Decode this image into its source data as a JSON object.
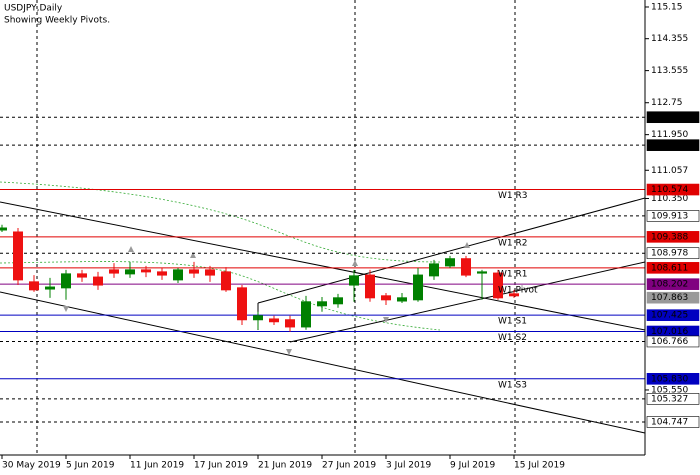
{
  "chart_data": {
    "type": "candlestick",
    "title": "USDJPY,Daily",
    "subtitle": "Showing Weekly Pivots.",
    "categories": [
      "30 May 2019",
      null,
      null,
      null,
      "5 Jun 2019",
      null,
      null,
      null,
      "11 Jun 2019",
      null,
      null,
      null,
      "17 Jun 2019",
      null,
      null,
      null,
      "21 Jun 2019",
      null,
      null,
      null,
      "27 Jun 2019",
      null,
      null,
      null,
      "3 Jul 2019",
      null,
      null,
      null,
      "9 Jul 2019",
      null,
      null,
      null,
      "15 Jul 2019"
    ],
    "open": [
      109.56,
      109.51,
      108.26,
      108.08,
      108.11,
      108.46,
      108.38,
      108.56,
      108.46,
      108.56,
      108.51,
      108.31,
      108.56,
      108.56,
      108.51,
      108.11,
      107.31,
      107.33,
      107.31,
      107.13,
      107.66,
      107.71,
      108.18,
      108.43,
      107.91,
      107.78,
      107.81,
      108.41,
      108.66,
      108.84,
      108.48,
      108.48,
      107.96
    ],
    "high": [
      109.69,
      109.61,
      108.43,
      108.36,
      108.56,
      108.56,
      108.51,
      108.73,
      108.76,
      108.66,
      108.61,
      108.61,
      108.76,
      108.66,
      108.63,
      108.18,
      107.51,
      107.41,
      107.41,
      107.91,
      107.88,
      107.96,
      108.56,
      108.56,
      107.98,
      107.98,
      108.61,
      108.81,
      108.91,
      108.91,
      108.56,
      108.56,
      108.06
    ],
    "low": [
      109.51,
      108.18,
      108.01,
      107.86,
      107.81,
      108.26,
      108.06,
      108.36,
      108.36,
      108.38,
      108.31,
      108.23,
      108.36,
      108.26,
      108.01,
      107.18,
      107.06,
      107.18,
      107.01,
      107.06,
      107.51,
      107.61,
      107.76,
      107.76,
      107.68,
      107.73,
      107.76,
      108.31,
      108.61,
      108.38,
      107.81,
      107.81,
      107.86
    ],
    "close": [
      109.61,
      108.31,
      108.06,
      108.13,
      108.46,
      108.38,
      108.18,
      108.48,
      108.56,
      108.51,
      108.43,
      108.56,
      108.48,
      108.43,
      108.06,
      107.31,
      107.41,
      107.26,
      107.13,
      107.76,
      107.76,
      107.86,
      108.41,
      107.86,
      107.81,
      107.86,
      108.43,
      108.71,
      108.84,
      108.43,
      108.51,
      107.86,
      107.91
    ],
    "up_color": "#008000",
    "down_color": "#ee1111",
    "ylim": [
      103.92,
      115.325
    ],
    "yticks": [
      115.15,
      114.355,
      113.555,
      112.75,
      {
        "value": 111.95,
        "label": "111.950"
      },
      111.057,
      {
        "value": 110.35,
        "label": "110.350"
      },
      {
        "value": 105.55,
        "label": "105.550"
      }
    ],
    "levels": [
      {
        "value": 112.387,
        "color": "#000000",
        "style": "dark"
      },
      {
        "value": 111.686,
        "color": "#000000",
        "style": "dark"
      },
      {
        "name": "W1 R3",
        "value": 110.574,
        "color": "#e00000",
        "style": "pivot"
      },
      {
        "value": 109.913,
        "color": "#000000",
        "style": "light"
      },
      {
        "name": "W1 R2",
        "value": 109.388,
        "color": "#e00000",
        "style": "pivot"
      },
      {
        "value": 108.978,
        "color": "#000000",
        "style": "light"
      },
      {
        "name": "W1 R1",
        "value": 108.611,
        "color": "#e00000",
        "style": "pivot"
      },
      {
        "name": "W1 Pivot",
        "value": 108.202,
        "color": "#800080",
        "style": "pivot"
      },
      {
        "value": 107.863,
        "color": "#999999",
        "style": "price"
      },
      {
        "name": "W1 S1",
        "value": 107.425,
        "color": "#0000c0",
        "style": "pivot"
      },
      {
        "name": "W1 S2",
        "value": 107.016,
        "color": "#0000c0",
        "style": "pivot"
      },
      {
        "value": 106.766,
        "color": "#000000",
        "style": "light"
      },
      {
        "name": "W1 S3",
        "value": 105.83,
        "label": "105.830",
        "color": "#0000c0",
        "style": "pivot"
      },
      {
        "value": 105.327,
        "color": "#000000",
        "style": "light"
      },
      {
        "value": 104.747,
        "color": "#000000",
        "style": "light"
      }
    ]
  }
}
